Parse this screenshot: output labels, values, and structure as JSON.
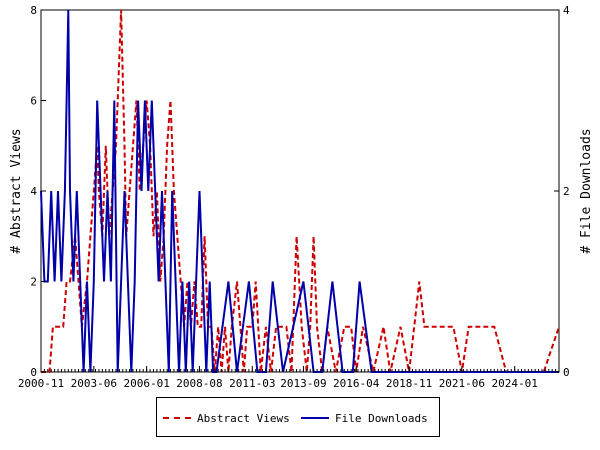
{
  "chart_data": {
    "type": "line",
    "x_tick_labels": [
      "2000-11",
      "2003-06",
      "2006-01",
      "2008-08",
      "2011-03",
      "2013-09",
      "2016-04",
      "2018-11",
      "2021-06",
      "2024-01"
    ],
    "x_range": [
      "2000-11",
      "2026-03"
    ],
    "ylabel_left": "# Abstract Views",
    "ylabel_right": "# File Downloads",
    "ylim_left": [
      0,
      8
    ],
    "yticks_left": [
      0,
      2,
      4,
      6,
      8
    ],
    "ylim_right": [
      0,
      4
    ],
    "yticks_right": [
      0,
      2,
      4
    ],
    "grid": false,
    "legend_position": "bottom",
    "series": [
      {
        "name": "Abstract Views",
        "axis": "left",
        "color": "#cc0000",
        "style": "dashed",
        "points": [
          [
            "2000-11",
            0
          ],
          [
            "2001-04",
            0
          ],
          [
            "2001-06",
            1
          ],
          [
            "2001-09",
            1
          ],
          [
            "2001-12",
            1
          ],
          [
            "2002-02",
            2
          ],
          [
            "2002-04",
            2
          ],
          [
            "2002-07",
            3
          ],
          [
            "2002-09",
            2
          ],
          [
            "2002-11",
            1
          ],
          [
            "2003-02",
            2
          ],
          [
            "2003-04",
            3
          ],
          [
            "2003-06",
            4
          ],
          [
            "2003-08",
            5
          ],
          [
            "2003-09",
            4
          ],
          [
            "2003-11",
            3
          ],
          [
            "2004-01",
            5
          ],
          [
            "2004-03",
            3
          ],
          [
            "2004-05",
            4
          ],
          [
            "2004-07",
            5
          ],
          [
            "2004-09",
            7
          ],
          [
            "2004-10",
            8
          ],
          [
            "2004-12",
            5
          ],
          [
            "2005-01",
            3
          ],
          [
            "2005-03",
            4
          ],
          [
            "2005-05",
            5
          ],
          [
            "2005-07",
            6
          ],
          [
            "2005-09",
            4
          ],
          [
            "2005-11",
            5
          ],
          [
            "2006-01",
            6
          ],
          [
            "2006-03",
            5
          ],
          [
            "2006-05",
            3
          ],
          [
            "2006-07",
            4
          ],
          [
            "2006-09",
            2
          ],
          [
            "2006-11",
            3
          ],
          [
            "2007-01",
            5
          ],
          [
            "2007-03",
            6
          ],
          [
            "2007-05",
            4
          ],
          [
            "2007-07",
            3
          ],
          [
            "2007-09",
            2
          ],
          [
            "2007-11",
            1
          ],
          [
            "2008-01",
            2
          ],
          [
            "2008-03",
            1
          ],
          [
            "2008-05",
            2
          ],
          [
            "2008-07",
            1
          ],
          [
            "2008-09",
            1
          ],
          [
            "2008-11",
            3
          ],
          [
            "2009-01",
            1
          ],
          [
            "2009-03",
            1
          ],
          [
            "2009-05",
            0
          ],
          [
            "2009-07",
            1
          ],
          [
            "2009-09",
            0
          ],
          [
            "2009-11",
            1
          ],
          [
            "2010-01",
            0
          ],
          [
            "2010-03",
            1
          ],
          [
            "2010-06",
            2
          ],
          [
            "2010-08",
            1
          ],
          [
            "2010-10",
            0
          ],
          [
            "2010-12",
            1
          ],
          [
            "2011-03",
            1
          ],
          [
            "2011-05",
            2
          ],
          [
            "2011-08",
            0
          ],
          [
            "2011-11",
            1
          ],
          [
            "2012-02",
            0
          ],
          [
            "2012-05",
            1
          ],
          [
            "2012-08",
            1
          ],
          [
            "2012-11",
            1
          ],
          [
            "2013-02",
            0
          ],
          [
            "2013-05",
            3
          ],
          [
            "2013-08",
            1
          ],
          [
            "2013-11",
            0
          ],
          [
            "2014-01",
            1
          ],
          [
            "2014-03",
            3
          ],
          [
            "2014-05",
            1
          ],
          [
            "2014-08",
            0
          ],
          [
            "2014-11",
            1
          ],
          [
            "2015-04",
            0
          ],
          [
            "2015-09",
            1
          ],
          [
            "2016-01",
            1
          ],
          [
            "2016-04",
            0
          ],
          [
            "2016-08",
            1
          ],
          [
            "2017-02",
            0
          ],
          [
            "2017-08",
            1
          ],
          [
            "2017-12",
            0
          ],
          [
            "2018-06",
            1
          ],
          [
            "2018-11",
            0
          ],
          [
            "2019-02",
            1
          ],
          [
            "2019-05",
            2
          ],
          [
            "2019-08",
            1
          ],
          [
            "2019-11",
            1
          ],
          [
            "2020-03",
            1
          ],
          [
            "2020-06",
            1
          ],
          [
            "2020-09",
            1
          ],
          [
            "2021-01",
            1
          ],
          [
            "2021-06",
            0
          ],
          [
            "2021-10",
            1
          ],
          [
            "2022-05",
            1
          ],
          [
            "2023-01",
            1
          ],
          [
            "2023-08",
            0
          ],
          [
            "2024-06",
            0
          ],
          [
            "2025-06",
            0
          ],
          [
            "2026-03",
            1
          ]
        ]
      },
      {
        "name": "File Downloads",
        "axis": "right",
        "color": "#0000aa",
        "style": "solid",
        "points": [
          [
            "2000-11",
            2
          ],
          [
            "2001-01",
            1
          ],
          [
            "2001-03",
            1
          ],
          [
            "2001-05",
            2
          ],
          [
            "2001-07",
            1
          ],
          [
            "2001-09",
            2
          ],
          [
            "2001-11",
            1
          ],
          [
            "2002-01",
            2
          ],
          [
            "2002-02",
            3
          ],
          [
            "2002-03",
            4
          ],
          [
            "2002-04",
            2
          ],
          [
            "2002-06",
            1
          ],
          [
            "2002-08",
            2
          ],
          [
            "2002-10",
            1
          ],
          [
            "2002-12",
            0
          ],
          [
            "2003-02",
            1
          ],
          [
            "2003-04",
            0
          ],
          [
            "2003-06",
            1
          ],
          [
            "2003-08",
            3
          ],
          [
            "2003-10",
            2
          ],
          [
            "2003-12",
            1
          ],
          [
            "2004-02",
            2
          ],
          [
            "2004-04",
            1
          ],
          [
            "2004-06",
            3
          ],
          [
            "2004-08",
            0
          ],
          [
            "2004-10",
            1
          ],
          [
            "2004-12",
            2
          ],
          [
            "2005-02",
            1
          ],
          [
            "2005-04",
            0
          ],
          [
            "2005-06",
            1
          ],
          [
            "2005-08",
            3
          ],
          [
            "2005-10",
            2
          ],
          [
            "2005-12",
            3
          ],
          [
            "2006-02",
            2
          ],
          [
            "2006-04",
            3
          ],
          [
            "2006-06",
            2
          ],
          [
            "2006-08",
            1
          ],
          [
            "2006-10",
            2
          ],
          [
            "2006-12",
            1
          ],
          [
            "2007-02",
            0
          ],
          [
            "2007-04",
            2
          ],
          [
            "2007-06",
            1
          ],
          [
            "2007-08",
            0
          ],
          [
            "2007-10",
            1
          ],
          [
            "2007-12",
            0
          ],
          [
            "2008-02",
            1
          ],
          [
            "2008-04",
            0
          ],
          [
            "2008-06",
            1
          ],
          [
            "2008-08",
            2
          ],
          [
            "2008-10",
            1
          ],
          [
            "2008-12",
            0
          ],
          [
            "2009-02",
            1
          ],
          [
            "2009-04",
            0
          ],
          [
            "2009-06",
            0
          ],
          [
            "2010-01",
            1
          ],
          [
            "2010-06",
            0
          ],
          [
            "2011-01",
            1
          ],
          [
            "2011-06",
            0
          ],
          [
            "2011-11",
            0
          ],
          [
            "2012-03",
            1
          ],
          [
            "2012-09",
            0
          ],
          [
            "2013-09",
            1
          ],
          [
            "2014-03",
            0
          ],
          [
            "2014-08",
            0
          ],
          [
            "2015-02",
            1
          ],
          [
            "2015-08",
            0
          ],
          [
            "2016-02",
            0
          ],
          [
            "2016-06",
            1
          ],
          [
            "2017-01",
            0
          ],
          [
            "2018-06",
            0
          ],
          [
            "2020-01",
            0
          ],
          [
            "2022-01",
            0
          ],
          [
            "2024-01",
            0
          ],
          [
            "2026-03",
            0
          ]
        ]
      }
    ],
    "legend": [
      {
        "label": "Abstract Views",
        "style": "dashed",
        "color": "#cc0000"
      },
      {
        "label": "File Downloads",
        "style": "solid",
        "color": "#0000aa"
      }
    ]
  }
}
